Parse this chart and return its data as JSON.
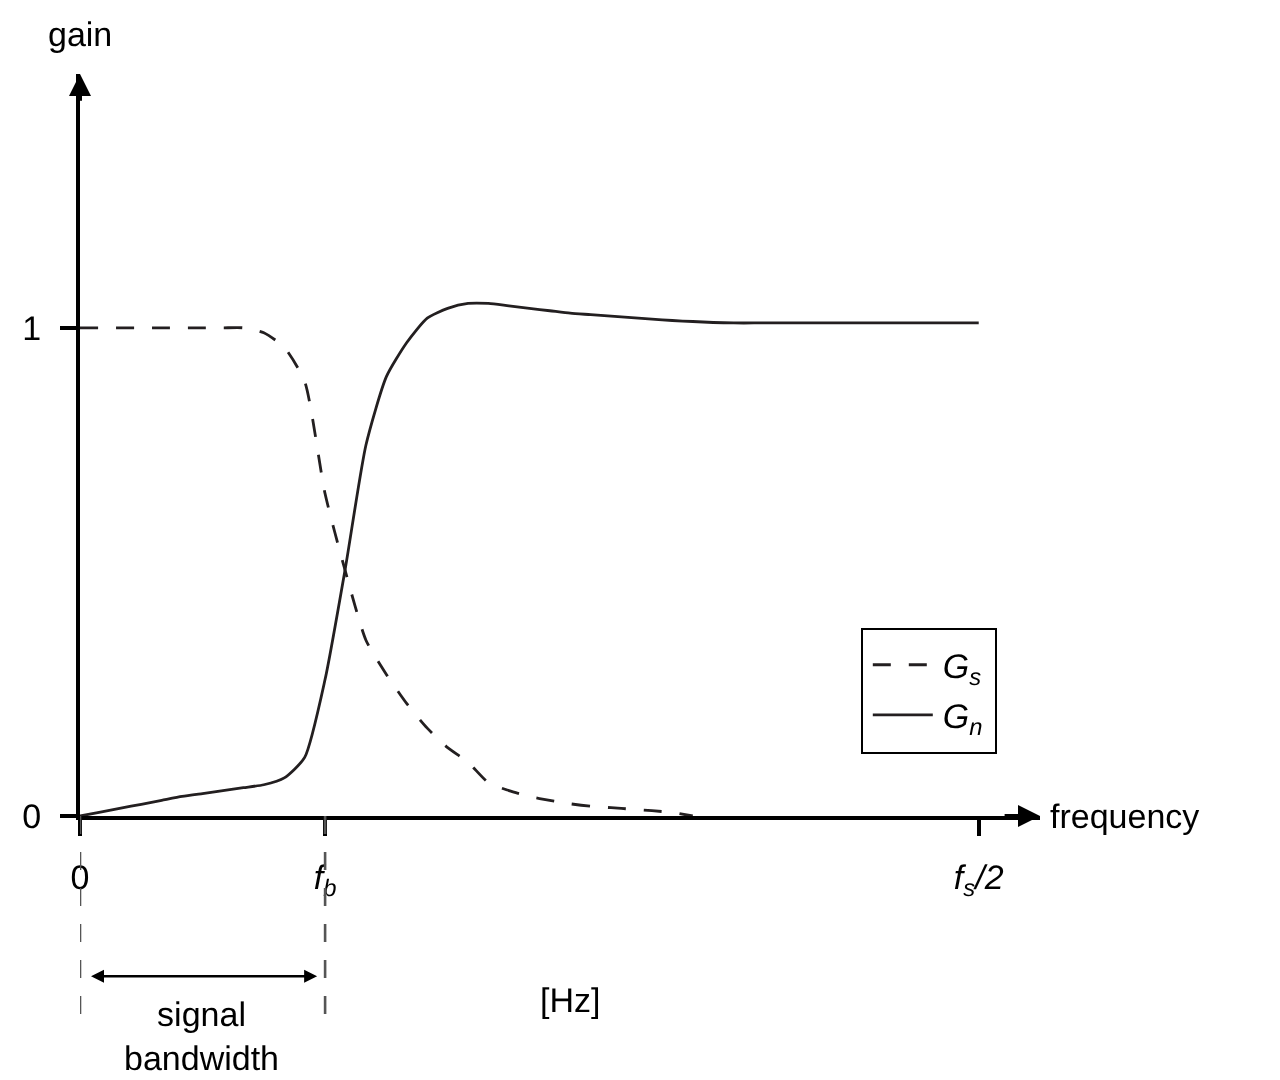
{
  "chart_data": {
    "type": "line",
    "xlabel": "frequency",
    "ylabel": "gain",
    "annotations": [
      "signal bandwidth",
      "[Hz]"
    ],
    "categories": [
      "0",
      null,
      null,
      null,
      null,
      null,
      null,
      null,
      null,
      null,
      null,
      null,
      "f$_{b}$",
      null,
      null,
      null,
      null,
      null,
      null,
      null,
      null,
      null,
      null,
      null,
      null,
      null,
      null,
      null,
      null,
      null,
      null,
      null,
      null,
      null,
      null,
      null,
      null,
      null,
      null,
      null,
      null,
      null,
      null,
      null,
      "f$_{s}$/2",
      null,
      null,
      null
    ],
    "ylim": [
      0,
      1.52
    ],
    "yticks": [
      0,
      1
    ],
    "legend": "bottom right",
    "series": [
      {
        "name": "G$_{s}$",
        "color": "#231f20",
        "line_style": "dashed",
        "values": [
          1,
          1,
          1,
          1,
          1,
          1,
          1,
          1,
          1,
          0.99,
          0.96,
          0.89,
          0.66,
          0.5,
          0.36,
          0.29,
          0.23,
          0.18,
          0.14,
          0.11,
          0.068,
          0.052,
          0.04,
          0.032,
          0.025,
          0.02,
          0.017,
          0.014,
          0.011,
          0.007,
          0,
          null,
          null,
          null,
          null,
          null,
          null,
          null,
          null,
          null,
          null,
          null,
          null,
          null,
          null,
          null,
          null,
          null
        ]
      },
      {
        "name": "G$_{n}$",
        "color": "#231f20",
        "line_style": "solid",
        "values": [
          0,
          0.008,
          0.016,
          0.024,
          0.032,
          0.04,
          0.046,
          0.052,
          0.058,
          0.064,
          0.078,
          0.12,
          0.28,
          0.51,
          0.76,
          0.9,
          0.97,
          1.02,
          1.04,
          1.05,
          1.05,
          1.045,
          1.04,
          1.035,
          1.03,
          1.027,
          1.024,
          1.021,
          1.018,
          1.015,
          1.013,
          1.011,
          1.01,
          1.01,
          1.01,
          1.01,
          1.01,
          1.01,
          1.01,
          1.01,
          1.01,
          1.01,
          1.01,
          1.01,
          1.01,
          null,
          null,
          null
        ]
      }
    ]
  }
}
